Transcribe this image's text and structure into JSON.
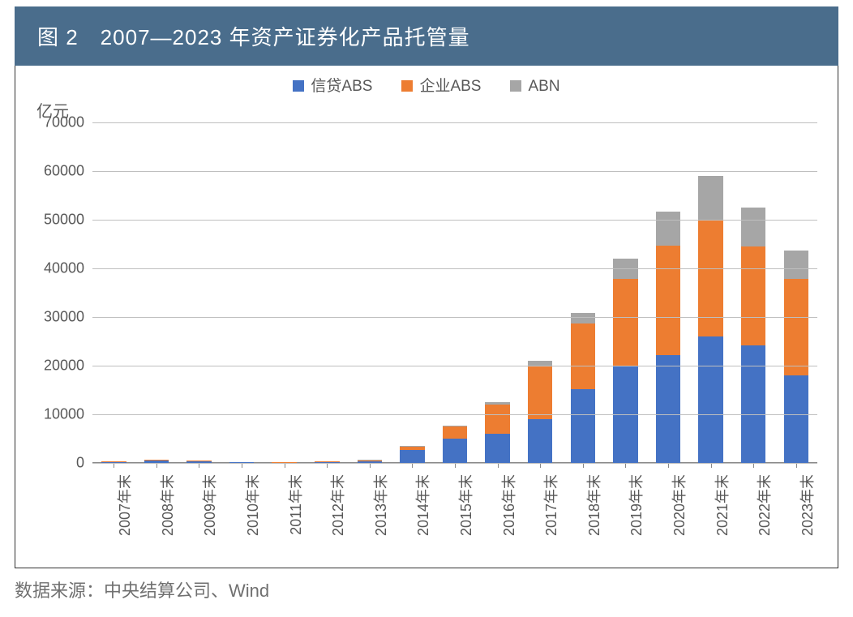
{
  "chart": {
    "type": "stacked-bar",
    "title": "图 2　2007—2023 年资产证券化产品托管量",
    "y_axis_label": "亿元",
    "ylim": [
      0,
      70000
    ],
    "ytick_step": 10000,
    "yticks": [
      "0",
      "10000",
      "20000",
      "30000",
      "40000",
      "50000",
      "60000",
      "70000"
    ],
    "categories": [
      "2007年末",
      "2008年末",
      "2009年末",
      "2010年末",
      "2011年末",
      "2012年末",
      "2013年末",
      "2014年末",
      "2015年末",
      "2016年末",
      "2017年末",
      "2018年末",
      "2019年末",
      "2020年末",
      "2021年末",
      "2022年末",
      "2023年末"
    ],
    "series": [
      {
        "name": "信贷ABS",
        "color": "#4472c4",
        "values": [
          200,
          550,
          400,
          100,
          80,
          200,
          350,
          2700,
          5000,
          6000,
          9000,
          15200,
          20000,
          22200,
          26000,
          24200,
          18000
        ]
      },
      {
        "name": "企业ABS",
        "color": "#ed7d31",
        "values": [
          100,
          120,
          150,
          50,
          30,
          100,
          150,
          700,
          2500,
          6000,
          11000,
          13500,
          17800,
          22500,
          24000,
          20300,
          19800
        ]
      },
      {
        "name": "ABN",
        "color": "#a6a6a6",
        "values": [
          0,
          0,
          0,
          0,
          0,
          50,
          100,
          150,
          200,
          500,
          1000,
          2200,
          4200,
          7000,
          9000,
          8000,
          5800
        ]
      }
    ],
    "header_bg": "#4a6d8c",
    "header_fg": "#ffffff",
    "grid_color": "#bfbfbf",
    "axis_color": "#888888",
    "label_color": "#585858",
    "background_color": "#ffffff",
    "title_fontsize": 26,
    "label_fontsize": 19,
    "tick_fontsize": 18
  },
  "source": {
    "prefix": "数据来源：",
    "text": "中央结算公司、Wind"
  }
}
